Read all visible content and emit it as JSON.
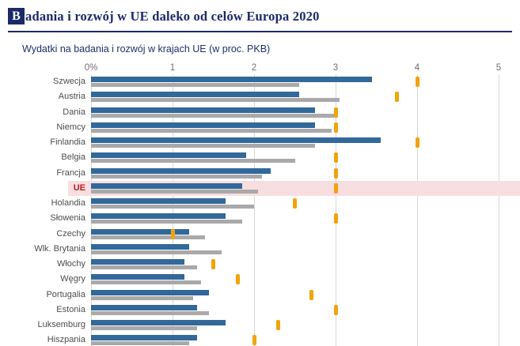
{
  "header": {
    "title_initial": "B",
    "title_rest": "adania i rozwój w UE daleko od celów Europa 2020",
    "subtitle": "Wydatki na badania i rozwój w krajach UE (w proc. PKB)"
  },
  "colors": {
    "navy": "#1b2a68",
    "bar_blue": "#32689a",
    "bar_gray": "#a9a9a9",
    "target_orange": "#f2a30b",
    "highlight_pink": "#f8dee1",
    "ue_label_red": "#bc1a22",
    "gridline_gray": "#d8d8d8"
  },
  "chart_data": {
    "type": "bar",
    "orientation": "horizontal",
    "title": "Badania i rozwój w UE daleko od celów Europa 2020",
    "subtitle": "Wydatki na badania i rozwój w krajach UE (w proc. PKB)",
    "x_axis": {
      "ticks": [
        "0%",
        "1",
        "2",
        "3",
        "4",
        "5"
      ],
      "values": [
        0,
        1,
        2,
        3,
        4,
        5
      ],
      "range": [
        0,
        5
      ],
      "unit": "proc. PKB"
    },
    "categories": [
      "Szwecja",
      "Austria",
      "Dania",
      "Niemcy",
      "Finlandia",
      "Belgia",
      "Francja",
      "UE",
      "Holandia",
      "Słowenia",
      "Czechy",
      "Wlk. Brytania",
      "Włochy",
      "Węgry",
      "Portugalia",
      "Estonia",
      "Luksemburg",
      "Hiszpania"
    ],
    "highlighted_category": "UE",
    "series": [
      {
        "name": "blue-bar-series",
        "color": "#32689a",
        "values": [
          3.45,
          2.55,
          2.75,
          2.75,
          3.55,
          1.9,
          2.2,
          1.85,
          1.65,
          1.65,
          1.2,
          1.2,
          1.15,
          1.15,
          1.45,
          1.3,
          1.65,
          1.3
        ]
      },
      {
        "name": "gray-bar-series",
        "color": "#a9a9a9",
        "values": [
          2.55,
          3.05,
          3.0,
          2.95,
          2.75,
          2.5,
          2.1,
          2.05,
          2.0,
          1.85,
          1.4,
          1.6,
          1.3,
          1.35,
          1.25,
          1.45,
          1.3,
          1.2
        ]
      }
    ],
    "targets": {
      "name": "cel Europa 2020",
      "color": "#f2a30b",
      "values": [
        4.0,
        3.75,
        3.0,
        3.0,
        4.0,
        3.0,
        3.0,
        3.0,
        2.5,
        3.0,
        1.0,
        null,
        1.5,
        1.8,
        2.7,
        3.0,
        2.3,
        2.0
      ]
    },
    "legend_visible": false,
    "grid": true
  }
}
